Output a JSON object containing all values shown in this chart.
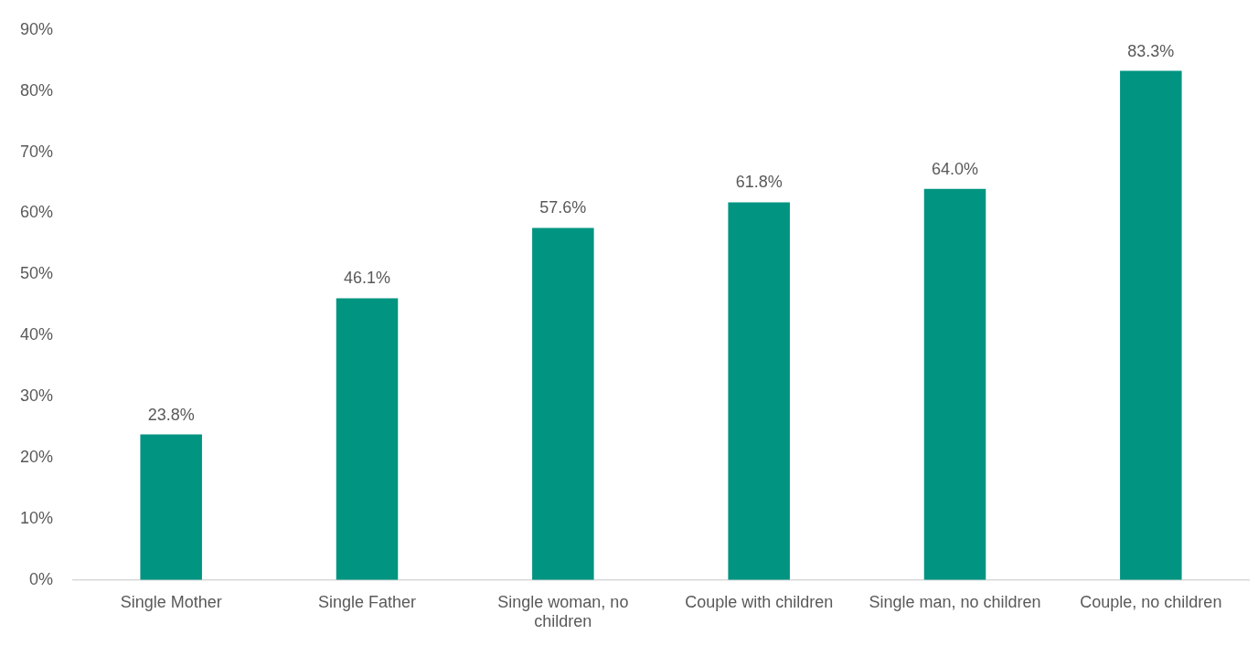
{
  "chart_data": {
    "type": "bar",
    "categories": [
      "Single Mother",
      "Single Father",
      "Single woman, no children",
      "Couple with children",
      "Single man, no children",
      "Couple, no children"
    ],
    "values": [
      23.8,
      46.1,
      57.6,
      61.8,
      64.0,
      83.3
    ],
    "value_labels": [
      "23.8%",
      "46.1%",
      "57.6%",
      "61.8%",
      "64.0%",
      "83.3%"
    ],
    "color": "#009481",
    "ylim": [
      0,
      90
    ],
    "yticks": [
      {
        "value": 0,
        "label": "0%"
      },
      {
        "value": 10,
        "label": "10%"
      },
      {
        "value": 20,
        "label": "20%"
      },
      {
        "value": 30,
        "label": "30%"
      },
      {
        "value": 40,
        "label": "40%"
      },
      {
        "value": 50,
        "label": "50%"
      },
      {
        "value": 60,
        "label": "60%"
      },
      {
        "value": 70,
        "label": "70%"
      },
      {
        "value": 80,
        "label": "80%"
      },
      {
        "value": 90,
        "label": "90%"
      }
    ],
    "grid": false,
    "legend": false
  }
}
